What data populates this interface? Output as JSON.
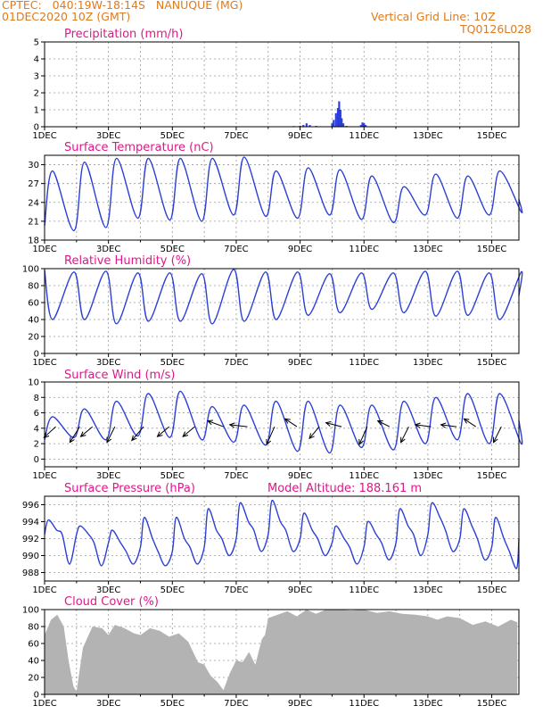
{
  "header": {
    "line1": "CPTEC:   040:19W-18:14S   NANUQUE (MG)",
    "line2": "01DEC2020 10Z (GMT)",
    "grid_note": "Vertical Grid Line: 10Z",
    "code": "TQ0126L028"
  },
  "x_tick_labels": [
    "1DEC",
    "3DEC",
    "5DEC",
    "7DEC",
    "9DEC",
    "11DEC",
    "13DEC",
    "15DEC"
  ],
  "x_tick_days": [
    1,
    3,
    5,
    7,
    9,
    11,
    13,
    15
  ],
  "colors": {
    "line": "#2b3fd6",
    "title": "#e0178a",
    "header": "#e07a1c",
    "cloud": "#b3b3b3"
  },
  "chart_data": [
    {
      "type": "bar",
      "title": "Precipitation (mm/h)",
      "ylim": [
        0,
        5
      ],
      "yticks": [
        0,
        1,
        2,
        3,
        4,
        5
      ],
      "x_unit": "day of December 2020 (10Z gridlines)",
      "points": [
        [
          1,
          0.02
        ],
        [
          2,
          0.02
        ],
        [
          3,
          0.02
        ],
        [
          4,
          0.02
        ],
        [
          5,
          0.02
        ],
        [
          6,
          0.02
        ],
        [
          7,
          0.02
        ],
        [
          8,
          0.02
        ],
        [
          8.8,
          0.04
        ],
        [
          9.0,
          0.06
        ],
        [
          9.1,
          0.1
        ],
        [
          9.2,
          0.2
        ],
        [
          9.3,
          0.1
        ],
        [
          9.5,
          0.05
        ],
        [
          10.0,
          0.2
        ],
        [
          10.05,
          0.4
        ],
        [
          10.12,
          0.8
        ],
        [
          10.18,
          1.1
        ],
        [
          10.22,
          1.5
        ],
        [
          10.26,
          1.0
        ],
        [
          10.3,
          0.5
        ],
        [
          10.35,
          0.2
        ],
        [
          10.45,
          0.05
        ],
        [
          10.9,
          0.1
        ],
        [
          10.95,
          0.25
        ],
        [
          11.0,
          0.2
        ],
        [
          11.05,
          0.1
        ],
        [
          12,
          0.02
        ],
        [
          13,
          0.02
        ],
        [
          14,
          0.02
        ],
        [
          15,
          0.02
        ],
        [
          15.8,
          0.02
        ]
      ]
    },
    {
      "type": "line",
      "title": "Surface Temperature (nC)",
      "ylim": [
        18,
        31.5
      ],
      "yticks": [
        18,
        21,
        24,
        27,
        30
      ],
      "min_day0": 20.3,
      "daily": [
        [
          29.0,
          19.5
        ],
        [
          30.4,
          20.0
        ],
        [
          31.0,
          21.5
        ],
        [
          31.0,
          21.2
        ],
        [
          31.0,
          21.0
        ],
        [
          31.0,
          22.0
        ],
        [
          31.2,
          21.8
        ],
        [
          29.0,
          21.5
        ],
        [
          29.5,
          22.0
        ],
        [
          29.2,
          21.3
        ],
        [
          28.2,
          20.8
        ],
        [
          26.5,
          22.0
        ],
        [
          28.5,
          21.5
        ],
        [
          28.2,
          22.0
        ],
        [
          29.0,
          22.5
        ]
      ],
      "end": 24.5
    },
    {
      "type": "line",
      "title": "Relative Humidity (%)",
      "ylim": [
        0,
        100
      ],
      "yticks": [
        0,
        20,
        40,
        60,
        80,
        100
      ],
      "min_day0": 98,
      "daily": [
        [
          40,
          96
        ],
        [
          40,
          97
        ],
        [
          35,
          95
        ],
        [
          38,
          95
        ],
        [
          38,
          94
        ],
        [
          35,
          99
        ],
        [
          38,
          96
        ],
        [
          40,
          96
        ],
        [
          45,
          94
        ],
        [
          48,
          95
        ],
        [
          52,
          95
        ],
        [
          48,
          97
        ],
        [
          44,
          97
        ],
        [
          45,
          95
        ],
        [
          40,
          96
        ]
      ],
      "end": 68
    },
    {
      "type": "line",
      "title": "Surface Wind (m/s)",
      "ylim": [
        -1,
        10
      ],
      "yticks": [
        0,
        2,
        4,
        6,
        8,
        10
      ],
      "min_day0": 2.5,
      "daily": [
        [
          5.5,
          2.8
        ],
        [
          6.5,
          2.5
        ],
        [
          7.5,
          3.0
        ],
        [
          8.5,
          2.8
        ],
        [
          8.8,
          2.5
        ],
        [
          6.8,
          2.2
        ],
        [
          7.0,
          1.8
        ],
        [
          7.5,
          1.0
        ],
        [
          7.5,
          0.8
        ],
        [
          7.0,
          1.5
        ],
        [
          7.0,
          1.2
        ],
        [
          7.5,
          2.0
        ],
        [
          8.0,
          2.5
        ],
        [
          8.5,
          2.0
        ],
        [
          8.5,
          2.0
        ]
      ],
      "end": 5.0,
      "arrows": [
        {
          "day": 1.35,
          "dx": -0.6,
          "dy": -0.55
        },
        {
          "day": 2.1,
          "dx": -0.5,
          "dy": -0.8
        },
        {
          "day": 2.5,
          "dx": -0.6,
          "dy": -0.5
        },
        {
          "day": 3.2,
          "dx": -0.4,
          "dy": -0.8
        },
        {
          "day": 4.1,
          "dx": -0.6,
          "dy": -0.7
        },
        {
          "day": 4.9,
          "dx": -0.6,
          "dy": -0.5
        },
        {
          "day": 5.7,
          "dx": -0.6,
          "dy": -0.5
        },
        {
          "day": 6.6,
          "dx": -0.8,
          "dy": 0.3
        },
        {
          "day": 7.35,
          "dx": -0.9,
          "dy": 0.1
        },
        {
          "day": 8.2,
          "dx": -0.4,
          "dy": -0.9
        },
        {
          "day": 8.9,
          "dx": -0.6,
          "dy": 0.4
        },
        {
          "day": 9.6,
          "dx": -0.5,
          "dy": -0.6
        },
        {
          "day": 10.3,
          "dx": -0.8,
          "dy": 0.2
        },
        {
          "day": 11.1,
          "dx": -0.4,
          "dy": -0.9
        },
        {
          "day": 11.8,
          "dx": -0.6,
          "dy": 0.3
        },
        {
          "day": 12.4,
          "dx": -0.4,
          "dy": -0.8
        },
        {
          "day": 13.1,
          "dx": -0.8,
          "dy": 0.1
        },
        {
          "day": 13.9,
          "dx": -0.8,
          "dy": 0.1
        },
        {
          "day": 14.5,
          "dx": -0.6,
          "dy": 0.4
        },
        {
          "day": 15.3,
          "dx": -0.4,
          "dy": -0.8
        }
      ]
    },
    {
      "type": "line",
      "title": "Surface Pressure (hPa)",
      "extra_label": "Model Altitude: 188.161  m",
      "ylim": [
        987,
        997
      ],
      "yticks": [
        988,
        990,
        992,
        994,
        996
      ],
      "semidiurnal": [
        [
          992.5,
          994.2,
          993.0,
          992.5,
          989.0
        ],
        [
          992.5,
          993.5,
          992.5,
          991.5,
          988.8
        ],
        [
          991.5,
          993.0,
          991.5,
          990.5,
          989.0
        ],
        [
          991.0,
          994.5,
          992.0,
          990.5,
          988.8
        ],
        [
          990.5,
          994.5,
          992.0,
          991.0,
          989.0
        ],
        [
          991.0,
          995.5,
          993.0,
          992.0,
          990.0
        ],
        [
          992.0,
          996.2,
          994.0,
          993.0,
          990.5
        ],
        [
          992.5,
          996.5,
          994.0,
          993.0,
          990.5
        ],
        [
          992.0,
          995.0,
          993.0,
          992.0,
          990.0
        ],
        [
          991.5,
          993.5,
          992.0,
          991.0,
          989.0
        ],
        [
          991.0,
          994.0,
          992.5,
          991.5,
          989.5
        ],
        [
          991.5,
          995.5,
          993.5,
          992.5,
          990.0
        ],
        [
          992.5,
          996.2,
          994.5,
          993.0,
          990.5
        ],
        [
          992.0,
          995.5,
          993.5,
          992.0,
          989.5
        ],
        [
          991.0,
          994.5,
          992.0,
          990.5,
          988.5
        ]
      ],
      "end": 992.0
    },
    {
      "type": "area",
      "title": "Cloud Cover (%)",
      "ylim": [
        0,
        100
      ],
      "yticks": [
        0,
        20,
        40,
        60,
        80,
        100
      ],
      "points": [
        [
          1.0,
          70
        ],
        [
          1.2,
          88
        ],
        [
          1.4,
          94
        ],
        [
          1.6,
          80
        ],
        [
          1.75,
          40
        ],
        [
          1.9,
          10
        ],
        [
          2.0,
          3
        ],
        [
          2.2,
          55
        ],
        [
          2.5,
          80
        ],
        [
          2.8,
          78
        ],
        [
          3.0,
          70
        ],
        [
          3.2,
          82
        ],
        [
          3.5,
          78
        ],
        [
          3.8,
          72
        ],
        [
          4.0,
          70
        ],
        [
          4.3,
          78
        ],
        [
          4.6,
          75
        ],
        [
          4.9,
          68
        ],
        [
          5.2,
          72
        ],
        [
          5.5,
          62
        ],
        [
          5.8,
          38
        ],
        [
          6.0,
          35
        ],
        [
          6.2,
          22
        ],
        [
          6.4,
          15
        ],
        [
          6.6,
          5
        ],
        [
          6.8,
          25
        ],
        [
          7.0,
          40
        ],
        [
          7.2,
          38
        ],
        [
          7.4,
          50
        ],
        [
          7.6,
          35
        ],
        [
          7.8,
          65
        ],
        [
          7.9,
          70
        ],
        [
          8.0,
          90
        ],
        [
          8.3,
          94
        ],
        [
          8.6,
          98
        ],
        [
          8.9,
          92
        ],
        [
          9.2,
          100
        ],
        [
          9.5,
          95
        ],
        [
          9.8,
          100
        ],
        [
          10.2,
          100
        ],
        [
          10.6,
          99
        ],
        [
          11.0,
          100
        ],
        [
          11.4,
          96
        ],
        [
          11.8,
          98
        ],
        [
          12.2,
          95
        ],
        [
          12.6,
          94
        ],
        [
          13.0,
          92
        ],
        [
          13.3,
          88
        ],
        [
          13.6,
          92
        ],
        [
          14.0,
          90
        ],
        [
          14.4,
          82
        ],
        [
          14.8,
          86
        ],
        [
          15.2,
          80
        ],
        [
          15.6,
          88
        ],
        [
          15.8,
          85
        ]
      ]
    }
  ]
}
